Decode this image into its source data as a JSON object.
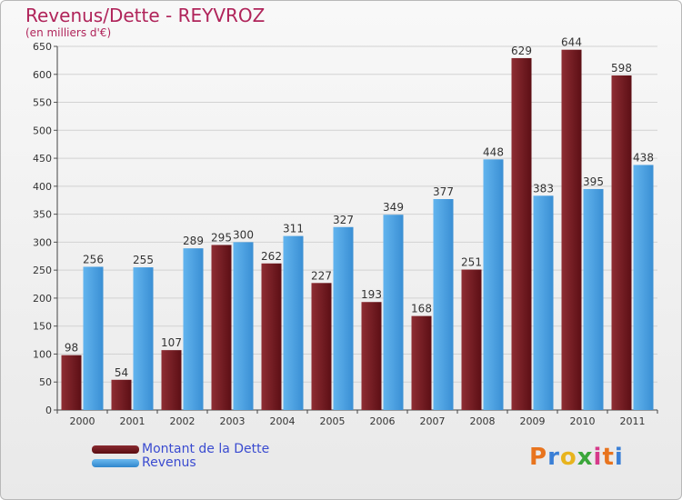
{
  "chart_data": {
    "type": "bar",
    "title": "Revenus/Dette - REYVROZ",
    "subtitle": "(en milliers d'€)",
    "categories": [
      "2000",
      "2001",
      "2002",
      "2003",
      "2004",
      "2005",
      "2006",
      "2007",
      "2008",
      "2009",
      "2010",
      "2011"
    ],
    "series": [
      {
        "name": "Montant de la Dette",
        "color": "#7a1f24",
        "values": [
          98,
          54,
          107,
          295,
          262,
          227,
          193,
          168,
          251,
          629,
          644,
          598
        ]
      },
      {
        "name": "Revenus",
        "color": "#4fa6e3",
        "values": [
          256,
          255,
          289,
          300,
          311,
          327,
          349,
          377,
          448,
          383,
          395,
          438
        ]
      }
    ],
    "ylim": [
      0,
      650
    ],
    "yticks": [
      0,
      50,
      100,
      150,
      200,
      250,
      300,
      350,
      400,
      450,
      500,
      550,
      600,
      650
    ],
    "grid": true,
    "legend_position": "bottom-left"
  },
  "brand": {
    "logo_text": "Proxiti",
    "letter_colors": [
      "#e8741e",
      "#3a7fd6",
      "#e8b41e",
      "#3aa63a",
      "#d63a8a",
      "#e8741e",
      "#3a7fd6"
    ]
  }
}
